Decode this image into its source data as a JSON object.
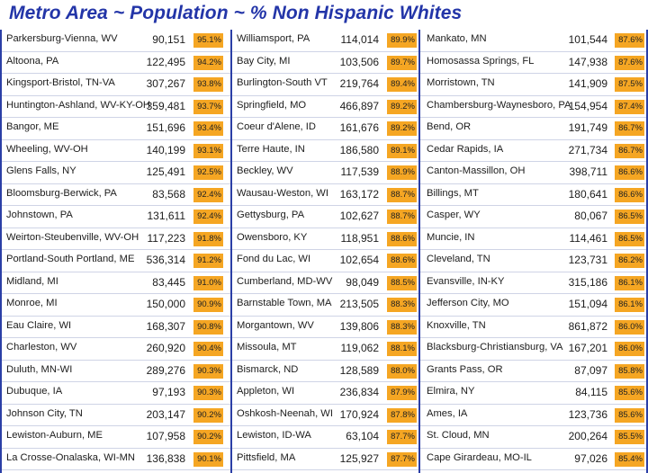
{
  "title": "Metro Area ~ Population ~ % Non Hispanic Whites",
  "columns": [
    [
      {
        "name": "Parkersburg-Vienna, WV",
        "population": "90,151",
        "pct": "95.1%"
      },
      {
        "name": "Altoona, PA",
        "population": "122,495",
        "pct": "94.2%"
      },
      {
        "name": "Kingsport-Bristol, TN-VA",
        "population": "307,267",
        "pct": "93.8%"
      },
      {
        "name": "Huntington-Ashland, WV-KY-OH",
        "population": "359,481",
        "pct": "93.7%"
      },
      {
        "name": "Bangor, ME",
        "population": "151,696",
        "pct": "93.4%"
      },
      {
        "name": "Wheeling, WV-OH",
        "population": "140,199",
        "pct": "93.1%"
      },
      {
        "name": "Glens Falls, NY",
        "population": "125,491",
        "pct": "92.5%"
      },
      {
        "name": "Bloomsburg-Berwick, PA",
        "population": "83,568",
        "pct": "92.4%"
      },
      {
        "name": "Johnstown, PA",
        "population": "131,611",
        "pct": "92.4%"
      },
      {
        "name": "Weirton-Steubenville, WV-OH",
        "population": "117,223",
        "pct": "91.8%"
      },
      {
        "name": "Portland-South Portland, ME",
        "population": "536,314",
        "pct": "91.2%"
      },
      {
        "name": "Midland, MI",
        "population": "83,445",
        "pct": "91.0%"
      },
      {
        "name": "Monroe, MI",
        "population": "150,000",
        "pct": "90.9%"
      },
      {
        "name": "Eau Claire, WI",
        "population": "168,307",
        "pct": "90.8%"
      },
      {
        "name": "Charleston, WV",
        "population": "260,920",
        "pct": "90.4%"
      },
      {
        "name": "Duluth, MN-WI",
        "population": "289,276",
        "pct": "90.3%"
      },
      {
        "name": "Dubuque, IA",
        "population": "97,193",
        "pct": "90.3%"
      },
      {
        "name": "Johnson City, TN",
        "population": "203,147",
        "pct": "90.2%"
      },
      {
        "name": "Lewiston-Auburn, ME",
        "population": "107,958",
        "pct": "90.2%"
      },
      {
        "name": "La Crosse-Onalaska, WI-MN",
        "population": "136,838",
        "pct": "90.1%"
      }
    ],
    [
      {
        "name": "Williamsport, PA",
        "population": "114,014",
        "pct": "89.9%"
      },
      {
        "name": "Bay City, MI",
        "population": "103,506",
        "pct": "89.7%"
      },
      {
        "name": "Burlington-South VT",
        "population": "219,764",
        "pct": "89.4%"
      },
      {
        "name": "Springfield, MO",
        "population": "466,897",
        "pct": "89.2%"
      },
      {
        "name": "Coeur d'Alene, ID",
        "population": "161,676",
        "pct": "89.2%"
      },
      {
        "name": "Terre Haute, IN",
        "population": "186,580",
        "pct": "89.1%"
      },
      {
        "name": "Beckley, WV",
        "population": "117,539",
        "pct": "88.9%"
      },
      {
        "name": "Wausau-Weston, WI",
        "population": "163,172",
        "pct": "88.7%"
      },
      {
        "name": "Gettysburg, PA",
        "population": "102,627",
        "pct": "88.7%"
      },
      {
        "name": "Owensboro, KY",
        "population": "118,951",
        "pct": "88.6%"
      },
      {
        "name": "Fond du Lac, WI",
        "population": "102,654",
        "pct": "88.6%"
      },
      {
        "name": "Cumberland, MD-WV",
        "population": "98,049",
        "pct": "88.5%"
      },
      {
        "name": "Barnstable Town, MA",
        "population": "213,505",
        "pct": "88.3%"
      },
      {
        "name": "Morgantown, WV",
        "population": "139,806",
        "pct": "88.3%"
      },
      {
        "name": "Missoula, MT",
        "population": "119,062",
        "pct": "88.1%"
      },
      {
        "name": "Bismarck, ND",
        "population": "128,589",
        "pct": "88.0%"
      },
      {
        "name": "Appleton, WI",
        "population": "236,834",
        "pct": "87.9%"
      },
      {
        "name": "Oshkosh-Neenah, WI",
        "population": "170,924",
        "pct": "87.8%"
      },
      {
        "name": "Lewiston, ID-WA",
        "population": "63,104",
        "pct": "87.7%"
      },
      {
        "name": "Pittsfield, MA",
        "population": "125,927",
        "pct": "87.7%"
      }
    ],
    [
      {
        "name": "Mankato, MN",
        "population": "101,544",
        "pct": "87.6%"
      },
      {
        "name": "Homosassa Springs, FL",
        "population": "147,938",
        "pct": "87.6%"
      },
      {
        "name": "Morristown, TN",
        "population": "141,909",
        "pct": "87.5%"
      },
      {
        "name": "Chambersburg-Waynesboro, PA",
        "population": "154,954",
        "pct": "87.4%"
      },
      {
        "name": "Bend, OR",
        "population": "191,749",
        "pct": "86.7%"
      },
      {
        "name": "Cedar Rapids, IA",
        "population": "271,734",
        "pct": "86.7%"
      },
      {
        "name": "Canton-Massillon, OH",
        "population": "398,711",
        "pct": "86.6%"
      },
      {
        "name": "Billings, MT",
        "population": "180,641",
        "pct": "86.6%"
      },
      {
        "name": "Casper, WY",
        "population": "80,067",
        "pct": "86.5%"
      },
      {
        "name": "Muncie, IN",
        "population": "114,461",
        "pct": "86.5%"
      },
      {
        "name": "Cleveland, TN",
        "population": "123,731",
        "pct": "86.2%"
      },
      {
        "name": "Evansville, IN-KY",
        "population": "315,186",
        "pct": "86.1%"
      },
      {
        "name": "Jefferson City, MO",
        "population": "151,094",
        "pct": "86.1%"
      },
      {
        "name": "Knoxville, TN",
        "population": "861,872",
        "pct": "86.0%"
      },
      {
        "name": "Blacksburg-Christiansburg, VA",
        "population": "167,201",
        "pct": "86.0%"
      },
      {
        "name": "Grants Pass, OR",
        "population": "87,097",
        "pct": "85.8%"
      },
      {
        "name": "Elmira, NY",
        "population": "84,115",
        "pct": "85.6%"
      },
      {
        "name": "Ames, IA",
        "population": "123,736",
        "pct": "85.6%"
      },
      {
        "name": "St. Cloud, MN",
        "population": "200,264",
        "pct": "85.5%"
      },
      {
        "name": "Cape Girardeau, MO-IL",
        "population": "97,026",
        "pct": "85.4%"
      }
    ]
  ],
  "colors": {
    "title": "#2335a8",
    "border": "#2b3fa6",
    "pct_fill": "#f5a623"
  }
}
